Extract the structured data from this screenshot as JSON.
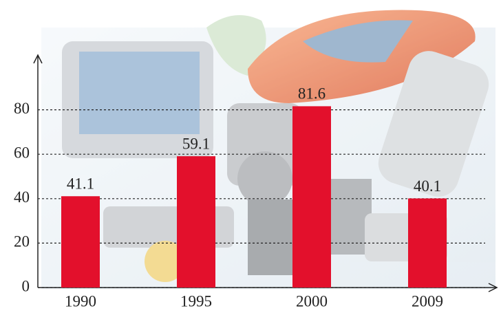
{
  "chart_data": {
    "type": "bar",
    "categories": [
      "1990",
      "1995",
      "2000",
      "2009"
    ],
    "values": [
      41.1,
      59.1,
      81.6,
      40.1
    ],
    "color": "#e3102c",
    "ylim": [
      0,
      100
    ],
    "yticks": [
      0,
      20,
      40,
      60,
      80
    ],
    "grid": true
  }
}
